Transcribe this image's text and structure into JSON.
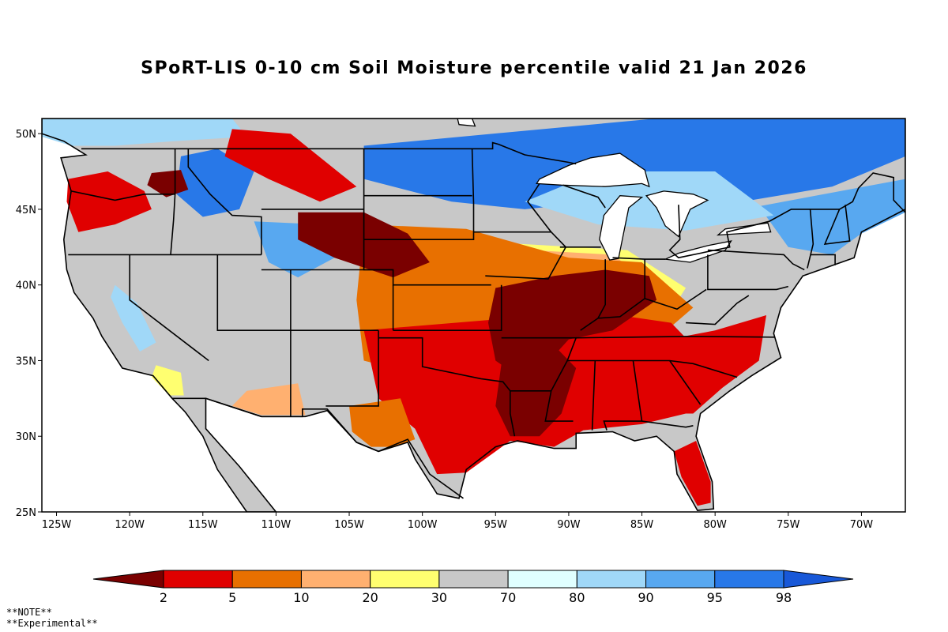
{
  "title": "SPoRT-LIS 0-10 cm Soil Moisture percentile valid 21 Jan 2026",
  "notes": [
    "**NOTE**",
    "**Experimental**"
  ],
  "map": {
    "lon_range": [
      -126,
      -67
    ],
    "lat_range": [
      25,
      51
    ],
    "lat_ticks": [
      {
        "value": 50,
        "label": "50N"
      },
      {
        "value": 45,
        "label": "45N"
      },
      {
        "value": 40,
        "label": "40N"
      },
      {
        "value": 35,
        "label": "35N"
      },
      {
        "value": 30,
        "label": "30N"
      },
      {
        "value": 25,
        "label": "25N"
      }
    ],
    "lon_ticks": [
      {
        "value": -125,
        "label": "125W"
      },
      {
        "value": -120,
        "label": "120W"
      },
      {
        "value": -115,
        "label": "115W"
      },
      {
        "value": -110,
        "label": "110W"
      },
      {
        "value": -105,
        "label": "105W"
      },
      {
        "value": -100,
        "label": "100W"
      },
      {
        "value": -95,
        "label": "95W"
      },
      {
        "value": -90,
        "label": "90W"
      },
      {
        "value": -85,
        "label": "85W"
      },
      {
        "value": -80,
        "label": "80W"
      },
      {
        "value": -75,
        "label": "75W"
      },
      {
        "value": -70,
        "label": "70W"
      }
    ]
  },
  "colorbar": {
    "labels": [
      "2",
      "5",
      "10",
      "20",
      "30",
      "70",
      "80",
      "90",
      "95",
      "98"
    ],
    "colors": [
      "#7a0000",
      "#e00000",
      "#e87000",
      "#ffb070",
      "#ffff70",
      "#c8c8c8",
      "#e0ffff",
      "#a0d8f8",
      "#58a8f0",
      "#2878e8",
      "#1858d8"
    ]
  },
  "palette": {
    "water": "#ffffff",
    "land_default": "#c8c8c8",
    "dry_extreme": "#7a0000",
    "dry_severe": "#e00000",
    "dry_moderate": "#e87000",
    "dry_light": "#ffb070",
    "dry_abnormal": "#ffff70",
    "wet_light": "#e0ffff",
    "wet_moderate": "#a0d8f8",
    "wet_severe": "#58a8f0",
    "wet_extreme": "#2878e8",
    "boundary": "#000000"
  }
}
